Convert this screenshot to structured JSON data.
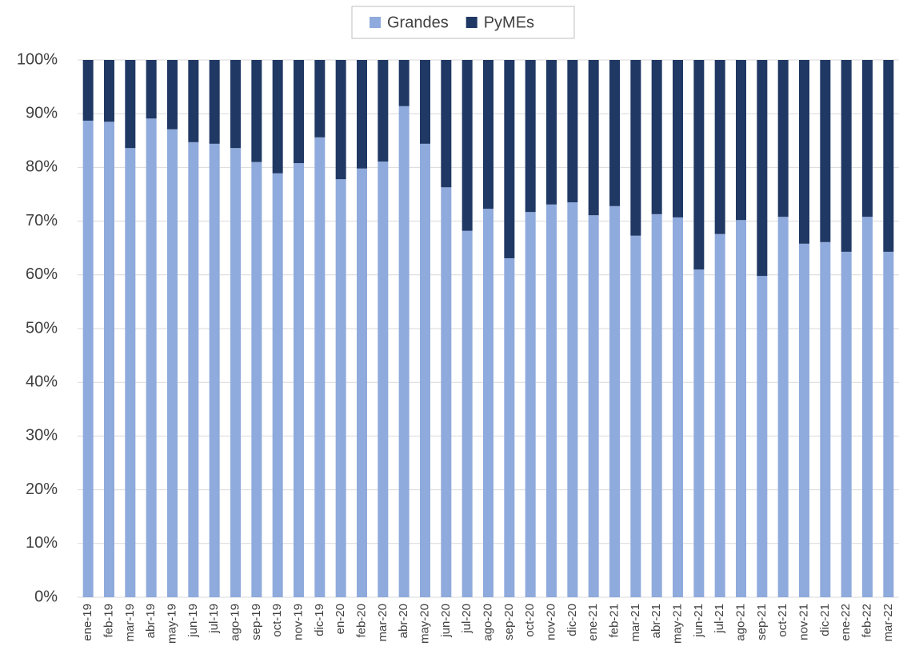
{
  "chart_data": {
    "type": "stacked-bar",
    "categories": [
      "ene-19",
      "feb-19",
      "mar-19",
      "abr-19",
      "may-19",
      "jun-19",
      "jul-19",
      "ago-19",
      "sep-19",
      "oct-19",
      "nov-19",
      "dic-19",
      "en-20",
      "feb-20",
      "mar-20",
      "abr-20",
      "may-20",
      "jun-20",
      "jul-20",
      "ago-20",
      "sep-20",
      "oct-20",
      "nov-20",
      "dic-20",
      "ene-21",
      "feb-21",
      "mar-21",
      "abr-21",
      "may-21",
      "jun-21",
      "jul-21",
      "ago-21",
      "sep-21",
      "oct-21",
      "nov-21",
      "dic-21",
      "ene-22",
      "feb-22",
      "mar-22"
    ],
    "series": [
      {
        "name": "Grandes",
        "color": "#8faadc",
        "values": [
          88.7,
          88.5,
          83.6,
          89.1,
          87.1,
          84.7,
          84.4,
          83.6,
          81.0,
          78.9,
          80.8,
          85.6,
          77.8,
          79.8,
          81.1,
          91.4,
          84.4,
          76.3,
          68.2,
          72.3,
          63.1,
          71.7,
          73.1,
          73.5,
          71.1,
          72.8,
          67.3,
          71.3,
          70.7,
          61.0,
          67.6,
          70.2,
          59.8,
          70.8,
          65.8,
          66.1,
          64.3,
          70.8,
          64.3
        ]
      },
      {
        "name": "PyMEs",
        "color": "#203864",
        "values": [
          11.3,
          11.5,
          16.4,
          10.9,
          12.9,
          15.3,
          15.6,
          16.4,
          19.0,
          21.1,
          19.2,
          14.4,
          22.2,
          20.2,
          18.9,
          8.6,
          15.6,
          23.7,
          31.8,
          27.7,
          36.9,
          28.3,
          26.9,
          26.5,
          28.9,
          27.2,
          32.7,
          28.7,
          29.3,
          39.0,
          32.4,
          29.8,
          40.2,
          29.2,
          34.2,
          33.9,
          35.7,
          29.2,
          35.7
        ]
      }
    ],
    "ylim": [
      0,
      100
    ],
    "yticks": [
      {
        "value": 0,
        "label": "0%"
      },
      {
        "value": 10,
        "label": "10%"
      },
      {
        "value": 20,
        "label": "20%"
      },
      {
        "value": 30,
        "label": "30%"
      },
      {
        "value": 40,
        "label": "40%"
      },
      {
        "value": 50,
        "label": "50%"
      },
      {
        "value": 60,
        "label": "60%"
      },
      {
        "value": 70,
        "label": "70%"
      },
      {
        "value": 80,
        "label": "80%"
      },
      {
        "value": 90,
        "label": "90%"
      },
      {
        "value": 100,
        "label": "100%"
      }
    ],
    "grid": true,
    "legend": "top"
  }
}
